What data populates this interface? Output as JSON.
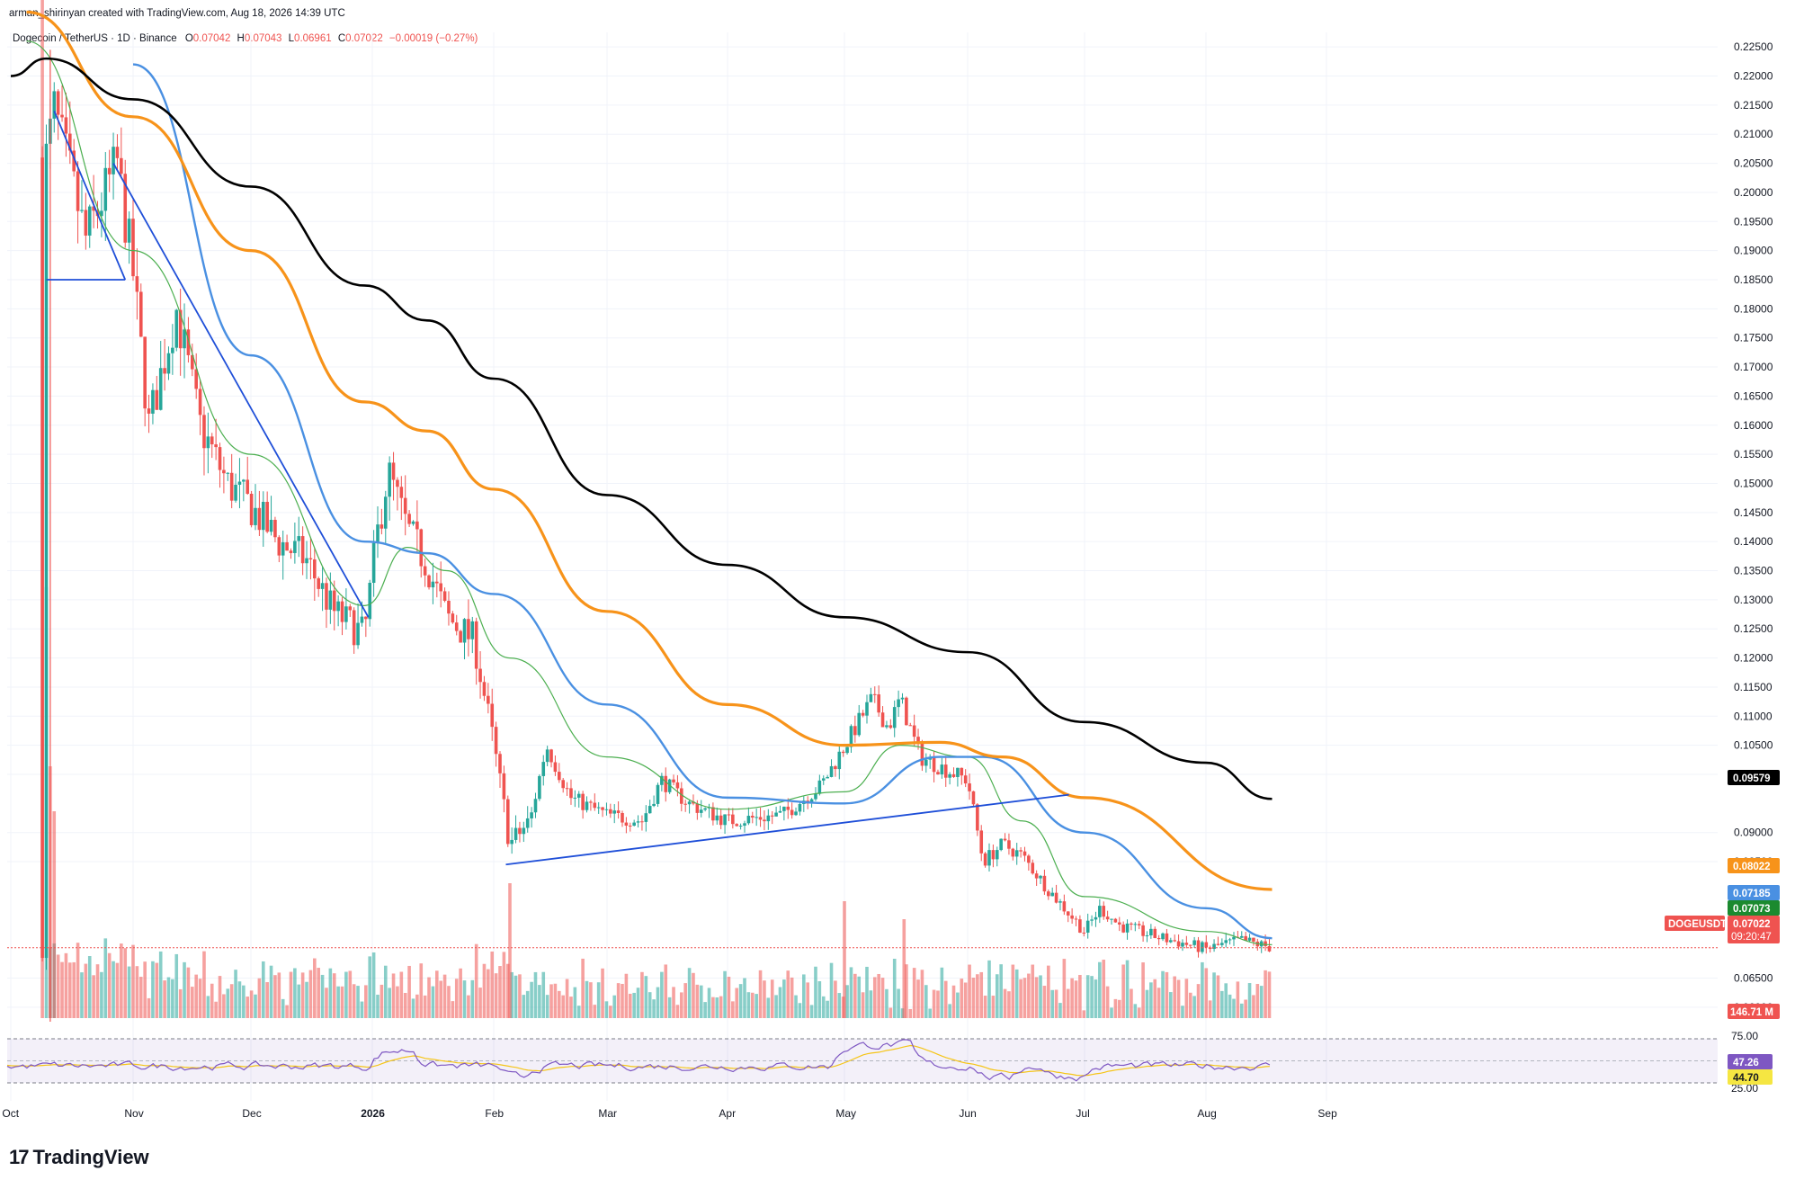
{
  "header": {
    "creator_line": "arman_shirinyan created with TradingView.com, Aug 18, 2026 14:39 UTC",
    "symbol_line": "Dogecoin / TetherUS · 1D · Binance",
    "o_label": "O",
    "o_value": "0.07042",
    "h_label": "H",
    "h_value": "0.07043",
    "l_label": "L",
    "l_value": "0.06961",
    "c_label": "C",
    "c_value": "0.07022",
    "change": "−0.00019 (−0.27%)"
  },
  "brand": {
    "name": "TradingView",
    "logo_text": "17"
  },
  "price_axis": {
    "ticks": [
      "0.22500",
      "0.22000",
      "0.21500",
      "0.21000",
      "0.20500",
      "0.20000",
      "0.19500",
      "0.19000",
      "0.18500",
      "0.18000",
      "0.17500",
      "0.17000",
      "0.16500",
      "0.16000",
      "0.15500",
      "0.15000",
      "0.14500",
      "0.14000",
      "0.13500",
      "0.13000",
      "0.12500",
      "0.12000",
      "0.11500",
      "0.11000",
      "0.10500",
      "0.10000",
      "0.09000",
      "0.08500",
      "0.06500",
      "0.06000"
    ]
  },
  "tags": {
    "ma200": "0.09579",
    "ma100": "0.08022",
    "ma50": "0.07185",
    "ma20": "0.07073",
    "symbol": "DOGEUSDT",
    "price": "0.07022",
    "countdown": "09:20:47",
    "volume": "146.71 M",
    "rsi": "47.26",
    "rsi_ma": "44.70"
  },
  "rsi_axis": {
    "upper": "75.00",
    "lower": "25.00"
  },
  "time_axis": [
    "Oct",
    "Nov",
    "Dec",
    "2026",
    "Feb",
    "Mar",
    "Apr",
    "May",
    "Jun",
    "Jul",
    "Aug",
    "Sep"
  ],
  "colors": {
    "up": "#26a69a",
    "down": "#ef5350",
    "ma20": "#4caf50",
    "ma50": "#4a90e2",
    "ma100": "#f7931a",
    "ma200": "#000000",
    "trend": "#1f4fd8",
    "rsi": "#7e57c2",
    "rsi_ma": "#f5c518"
  },
  "chart_data": {
    "type": "candlestick",
    "symbol": "DOGEUSDT",
    "interval": "1D",
    "ylim": [
      0.0575,
      0.2275
    ],
    "x_range": [
      "Oct",
      "Sep"
    ],
    "price_anchors": [
      {
        "x": "Oct 10",
        "close": 0.206
      },
      {
        "x": "Oct 12",
        "close": 0.214
      },
      {
        "x": "Oct 20",
        "close": 0.192
      },
      {
        "x": "Oct 28",
        "close": 0.205
      },
      {
        "x": "Nov 1",
        "close": 0.186
      },
      {
        "x": "Nov 5",
        "close": 0.16
      },
      {
        "x": "Nov 12",
        "close": 0.18
      },
      {
        "x": "Nov 18",
        "close": 0.16
      },
      {
        "x": "Nov 25",
        "close": 0.15
      },
      {
        "x": "Dec 1",
        "close": 0.146
      },
      {
        "x": "Dec 8",
        "close": 0.14
      },
      {
        "x": "Dec 15",
        "close": 0.137
      },
      {
        "x": "Dec 22",
        "close": 0.128
      },
      {
        "x": "Dec 30",
        "close": 0.124
      },
      {
        "x": "Jan 2",
        "close": 0.14
      },
      {
        "x": "Jan 5",
        "close": 0.152
      },
      {
        "x": "Jan 10",
        "close": 0.142
      },
      {
        "x": "Jan 15",
        "close": 0.136
      },
      {
        "x": "Jan 20",
        "close": 0.127
      },
      {
        "x": "Jan 27",
        "close": 0.123
      },
      {
        "x": "Feb 1",
        "close": 0.105
      },
      {
        "x": "Feb 5",
        "close": 0.088
      },
      {
        "x": "Feb 10",
        "close": 0.092
      },
      {
        "x": "Feb 14",
        "close": 0.105
      },
      {
        "x": "Feb 20",
        "close": 0.096
      },
      {
        "x": "Mar 1",
        "close": 0.093
      },
      {
        "x": "Mar 10",
        "close": 0.092
      },
      {
        "x": "Mar 15",
        "close": 0.099
      },
      {
        "x": "Mar 22",
        "close": 0.095
      },
      {
        "x": "Apr 1",
        "close": 0.092
      },
      {
        "x": "Apr 15",
        "close": 0.093
      },
      {
        "x": "Apr 25",
        "close": 0.098
      },
      {
        "x": "May 2",
        "close": 0.106
      },
      {
        "x": "May 8",
        "close": 0.113
      },
      {
        "x": "May 12",
        "close": 0.108
      },
      {
        "x": "May 15",
        "close": 0.113
      },
      {
        "x": "May 20",
        "close": 0.103
      },
      {
        "x": "Jun 1",
        "close": 0.099
      },
      {
        "x": "Jun 5",
        "close": 0.085
      },
      {
        "x": "Jun 10",
        "close": 0.088
      },
      {
        "x": "Jun 15",
        "close": 0.086
      },
      {
        "x": "Jun 22",
        "close": 0.08
      },
      {
        "x": "Jul 1",
        "close": 0.073
      },
      {
        "x": "Jul 5",
        "close": 0.077
      },
      {
        "x": "Jul 10",
        "close": 0.074
      },
      {
        "x": "Jul 20",
        "close": 0.072
      },
      {
        "x": "Aug 1",
        "close": 0.07
      },
      {
        "x": "Aug 10",
        "close": 0.0715
      },
      {
        "x": "Aug 18",
        "close": 0.07022
      }
    ],
    "moving_averages": [
      {
        "name": "MA 20",
        "last": 0.07073,
        "points": [
          [
            "Oct 5",
            0.226
          ],
          [
            "Nov 1",
            0.19
          ],
          [
            "Dec 1",
            0.155
          ],
          [
            "Dec 30",
            0.129
          ],
          [
            "Jan 10",
            0.139
          ],
          [
            "Jan 20",
            0.135
          ],
          [
            "Feb 5",
            0.12
          ],
          [
            "Mar 1",
            0.103
          ],
          [
            "Apr 1",
            0.094
          ],
          [
            "May 1",
            0.097
          ],
          [
            "May 15",
            0.105
          ],
          [
            "Jun 1",
            0.103
          ],
          [
            "Jun 15",
            0.092
          ],
          [
            "Jul 1",
            0.079
          ],
          [
            "Aug 1",
            0.073
          ],
          [
            "Aug 18",
            0.07073
          ]
        ]
      },
      {
        "name": "MA 50",
        "last": 0.07185,
        "points": [
          [
            "Nov 1",
            0.222
          ],
          [
            "Dec 1",
            0.172
          ],
          [
            "Dec 30",
            0.14
          ],
          [
            "Jan 15",
            0.138
          ],
          [
            "Feb 1",
            0.131
          ],
          [
            "Mar 1",
            0.112
          ],
          [
            "Apr 1",
            0.096
          ],
          [
            "May 1",
            0.095
          ],
          [
            "May 25",
            0.103
          ],
          [
            "Jun 5",
            0.103
          ],
          [
            "Jul 1",
            0.09
          ],
          [
            "Aug 1",
            0.077
          ],
          [
            "Aug 18",
            0.07185
          ]
        ]
      },
      {
        "name": "MA 100",
        "last": 0.08022,
        "points": [
          [
            "Oct 5",
            0.231
          ],
          [
            "Nov 1",
            0.213
          ],
          [
            "Dec 1",
            0.19
          ],
          [
            "Dec 30",
            0.164
          ],
          [
            "Jan 15",
            0.159
          ],
          [
            "Feb 1",
            0.149
          ],
          [
            "Mar 1",
            0.128
          ],
          [
            "Apr 1",
            0.112
          ],
          [
            "May 1",
            0.105
          ],
          [
            "May 25",
            0.1055
          ],
          [
            "Jun 10",
            0.103
          ],
          [
            "Jul 1",
            0.096
          ],
          [
            "Aug 18",
            0.08022
          ]
        ]
      },
      {
        "name": "MA 200",
        "last": 0.09579,
        "points": [
          [
            "Oct 1",
            0.22
          ],
          [
            "Oct 10",
            0.223
          ],
          [
            "Nov 1",
            0.216
          ],
          [
            "Dec 1",
            0.201
          ],
          [
            "Dec 30",
            0.184
          ],
          [
            "Jan 15",
            0.178
          ],
          [
            "Feb 1",
            0.168
          ],
          [
            "Mar 1",
            0.148
          ],
          [
            "Apr 1",
            0.136
          ],
          [
            "May 1",
            0.127
          ],
          [
            "Jun 1",
            0.121
          ],
          [
            "Jul 1",
            0.109
          ],
          [
            "Aug 1",
            0.102
          ],
          [
            "Aug 18",
            0.09579
          ]
        ]
      }
    ],
    "trendlines": [
      {
        "points": [
          [
            "Oct 12",
            0.214
          ],
          [
            "Oct 30",
            0.185
          ]
        ]
      },
      {
        "points": [
          [
            "Oct 10",
            0.185
          ],
          [
            "Oct 30",
            0.185
          ]
        ]
      },
      {
        "points": [
          [
            "Oct 27",
            0.205
          ],
          [
            "Dec 31",
            0.127
          ]
        ]
      },
      {
        "points": [
          [
            "Feb 4",
            0.0845
          ],
          [
            "Jun 27",
            0.0965
          ]
        ]
      }
    ],
    "volume_last": "146.71 M",
    "rsi": {
      "upper": 75,
      "lower": 25,
      "value": 47.26,
      "ma": 44.7
    }
  }
}
